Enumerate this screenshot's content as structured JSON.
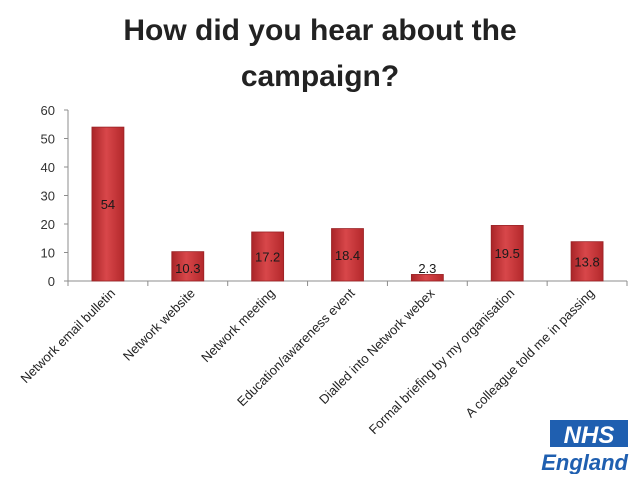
{
  "chart_data": {
    "type": "bar",
    "title": "How did you hear about the campaign?",
    "categories": [
      "Network email bulletin",
      "Network website",
      "Network meeting",
      "Education/awareness event",
      "Dialled into Network webex",
      "Formal briefing by my organisation",
      "A colleague told me in passing"
    ],
    "values": [
      54,
      10.3,
      17.2,
      18.4,
      2.3,
      19.5,
      13.8
    ],
    "ylim": [
      0,
      60
    ],
    "yticks": [
      0,
      10,
      20,
      30,
      40,
      50,
      60
    ],
    "grid": false,
    "legend": "none"
  },
  "colors": {
    "bar_fill": "#c8373a",
    "bar_edge": "#9a2225",
    "label_text": "#1a1a1a",
    "axis": "#8c8c8c",
    "brand_blue": "#1f5fb0"
  },
  "logo": {
    "top_text": "NHS",
    "bottom_text": "England"
  }
}
